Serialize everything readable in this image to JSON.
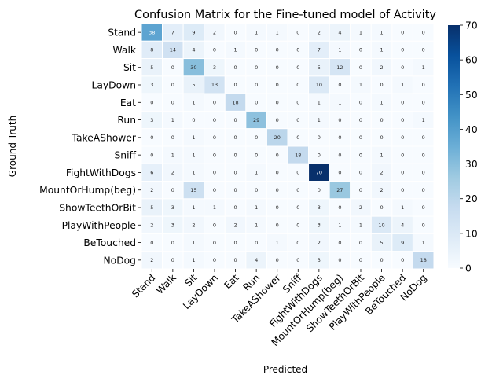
{
  "chart_data": {
    "type": "heatmap",
    "title": "Confusion Matrix for the Fine-tuned model of Activity",
    "xlabel": "Predicted",
    "ylabel": "Ground Truth",
    "row_labels": [
      "Stand",
      "Walk",
      "Sit",
      "LayDown",
      "Eat",
      "Run",
      "TakeAShower",
      "Sniff",
      "FightWithDogs",
      "MountOrHump(beg)",
      "ShowTeethOrBit",
      "PlayWithPeople",
      "BeTouched",
      "NoDog"
    ],
    "col_labels": [
      "Stand",
      "Walk",
      "Sit",
      "LayDown",
      "Eat",
      "Run",
      "TakeAShower",
      "Sniff",
      "FightWithDogs",
      "MountOrHump(beg)",
      "ShowTeethOrBit",
      "PlayWithPeople",
      "BeTouched",
      "NoDog"
    ],
    "values": [
      [
        38,
        7,
        9,
        2,
        0,
        1,
        1,
        0,
        2,
        4,
        1,
        1,
        0,
        0
      ],
      [
        8,
        14,
        4,
        0,
        1,
        0,
        0,
        0,
        7,
        1,
        0,
        1,
        0,
        0
      ],
      [
        5,
        0,
        30,
        3,
        0,
        0,
        0,
        0,
        5,
        12,
        0,
        2,
        0,
        1
      ],
      [
        3,
        0,
        5,
        13,
        0,
        0,
        0,
        0,
        10,
        0,
        1,
        0,
        1,
        0
      ],
      [
        0,
        0,
        1,
        0,
        18,
        0,
        0,
        0,
        1,
        1,
        0,
        1,
        0,
        0
      ],
      [
        3,
        1,
        0,
        0,
        0,
        29,
        0,
        0,
        1,
        0,
        0,
        0,
        0,
        1
      ],
      [
        0,
        0,
        1,
        0,
        0,
        0,
        20,
        0,
        0,
        0,
        0,
        0,
        0,
        0
      ],
      [
        0,
        1,
        1,
        0,
        0,
        0,
        0,
        18,
        0,
        0,
        0,
        1,
        0,
        0
      ],
      [
        6,
        2,
        1,
        0,
        0,
        1,
        0,
        0,
        70,
        0,
        0,
        2,
        0,
        0
      ],
      [
        2,
        0,
        15,
        0,
        0,
        0,
        0,
        0,
        0,
        27,
        0,
        2,
        0,
        0
      ],
      [
        5,
        3,
        1,
        1,
        0,
        1,
        0,
        0,
        3,
        0,
        2,
        0,
        1,
        0
      ],
      [
        2,
        3,
        2,
        0,
        2,
        1,
        0,
        0,
        3,
        1,
        1,
        10,
        4,
        0
      ],
      [
        0,
        0,
        1,
        0,
        0,
        0,
        1,
        0,
        2,
        0,
        0,
        5,
        9,
        1
      ],
      [
        2,
        0,
        1,
        0,
        0,
        4,
        0,
        0,
        3,
        0,
        0,
        0,
        0,
        18
      ]
    ],
    "colormap": "Blues",
    "colorbar": {
      "min": 0,
      "max": 70,
      "ticks": [
        0,
        10,
        20,
        30,
        40,
        50,
        60,
        70
      ]
    },
    "grid": false,
    "legend": "colorbar-right",
    "colors": {
      "low": "#f7fbff",
      "high": "#08306b",
      "cell_border": "#ffffff"
    }
  }
}
